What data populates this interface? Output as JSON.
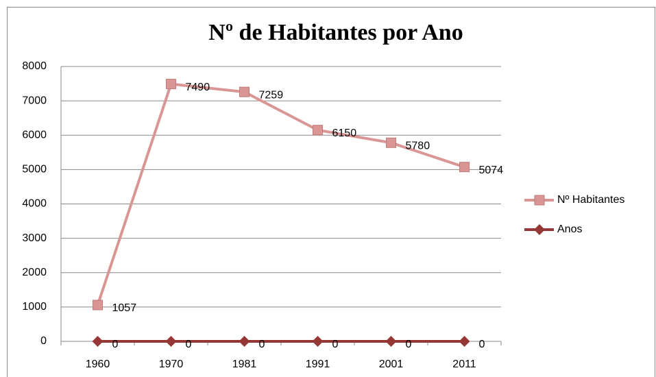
{
  "chart_data": {
    "type": "line",
    "title": "Nº de Habitantes por Ano",
    "categories": [
      "1960",
      "1970",
      "1981",
      "1991",
      "2001",
      "2011"
    ],
    "series": [
      {
        "name": "Nº Habitantes",
        "color": "#d99694",
        "values": [
          1057,
          7490,
          7259,
          6150,
          5780,
          5074
        ]
      },
      {
        "name": "Anos",
        "color": "#953735",
        "values": [
          0,
          0,
          0,
          0,
          0,
          0
        ]
      }
    ],
    "ylim": [
      0,
      8000
    ],
    "yticks": [
      0,
      1000,
      2000,
      3000,
      4000,
      5000,
      6000,
      7000,
      8000
    ],
    "grid": true,
    "legend": "right"
  }
}
